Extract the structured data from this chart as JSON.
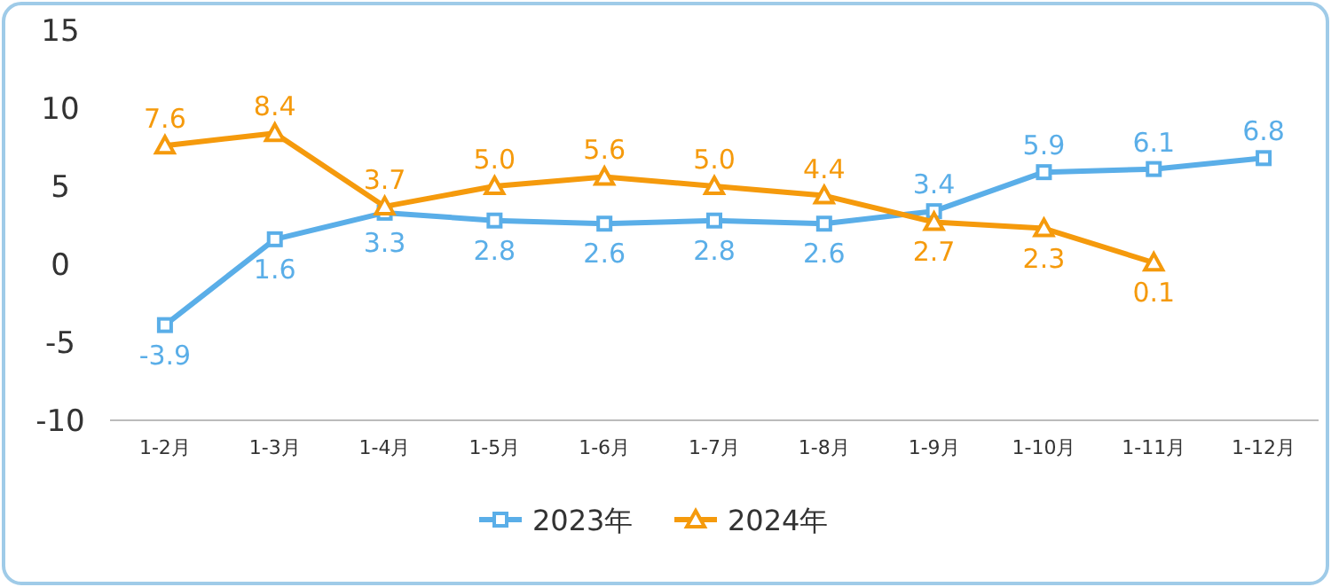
{
  "chart_data": {
    "type": "line",
    "categories": [
      "1-2月",
      "1-3月",
      "1-4月",
      "1-5月",
      "1-6月",
      "1-7月",
      "1-8月",
      "1-9月",
      "1-10月",
      "1-11月",
      "1-12月"
    ],
    "series": [
      {
        "name": "2023年",
        "color": "#5aaee8",
        "marker": "square",
        "values": [
          -3.9,
          1.6,
          3.3,
          2.8,
          2.6,
          2.8,
          2.6,
          3.4,
          5.9,
          6.1,
          6.8
        ],
        "value_labels": [
          "-3.9",
          "1.6",
          "3.3",
          "2.8",
          "2.6",
          "2.8",
          "2.6",
          "3.4",
          "5.9",
          "6.1",
          "6.8"
        ]
      },
      {
        "name": "2024年",
        "color": "#f59a0c",
        "marker": "triangle",
        "values": [
          7.6,
          8.4,
          3.7,
          5.0,
          5.6,
          5.0,
          4.4,
          2.7,
          2.3,
          0.1,
          null
        ],
        "value_labels": [
          "7.6",
          "8.4",
          "3.7",
          "5.0",
          "5.6",
          "5.0",
          "4.4",
          "2.7",
          "2.3",
          "0.1",
          null
        ]
      }
    ],
    "ylim": [
      -10,
      15
    ],
    "yticks": [
      -10,
      -5,
      0,
      5,
      10,
      15
    ],
    "legend": "bottom",
    "grid": false
  }
}
